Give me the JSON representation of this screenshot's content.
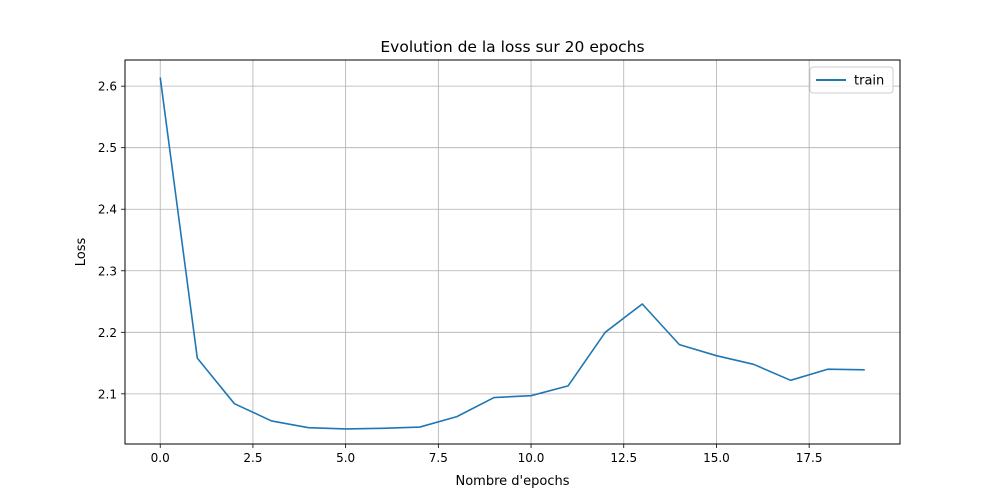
{
  "chart_data": {
    "type": "line",
    "title": "Evolution de la loss sur 20 epochs",
    "xlabel": "Nombre d'epochs",
    "ylabel": "Loss",
    "xlim": [
      -0.95,
      19.95
    ],
    "ylim": [
      2.0185,
      2.6425
    ],
    "xticks": [
      0.0,
      2.5,
      5.0,
      7.5,
      10.0,
      12.5,
      15.0,
      17.5
    ],
    "xtick_labels": [
      "0.0",
      "2.5",
      "5.0",
      "7.5",
      "10.0",
      "12.5",
      "15.0",
      "17.5"
    ],
    "yticks": [
      2.1,
      2.2,
      2.3,
      2.4,
      2.5,
      2.6
    ],
    "ytick_labels": [
      "2.1",
      "2.2",
      "2.3",
      "2.4",
      "2.5",
      "2.6"
    ],
    "grid": true,
    "legend_position": "top-right",
    "series": [
      {
        "name": "train",
        "color": "#1f77b4",
        "x": [
          0,
          1,
          2,
          3,
          4,
          5,
          6,
          7,
          8,
          9,
          10,
          11,
          12,
          13,
          14,
          15,
          16,
          17,
          18,
          19
        ],
        "y": [
          2.614,
          2.158,
          2.084,
          2.056,
          2.045,
          2.043,
          2.044,
          2.046,
          2.063,
          2.094,
          2.097,
          2.113,
          2.2,
          2.246,
          2.18,
          2.162,
          2.148,
          2.122,
          2.14,
          2.139
        ]
      }
    ]
  }
}
